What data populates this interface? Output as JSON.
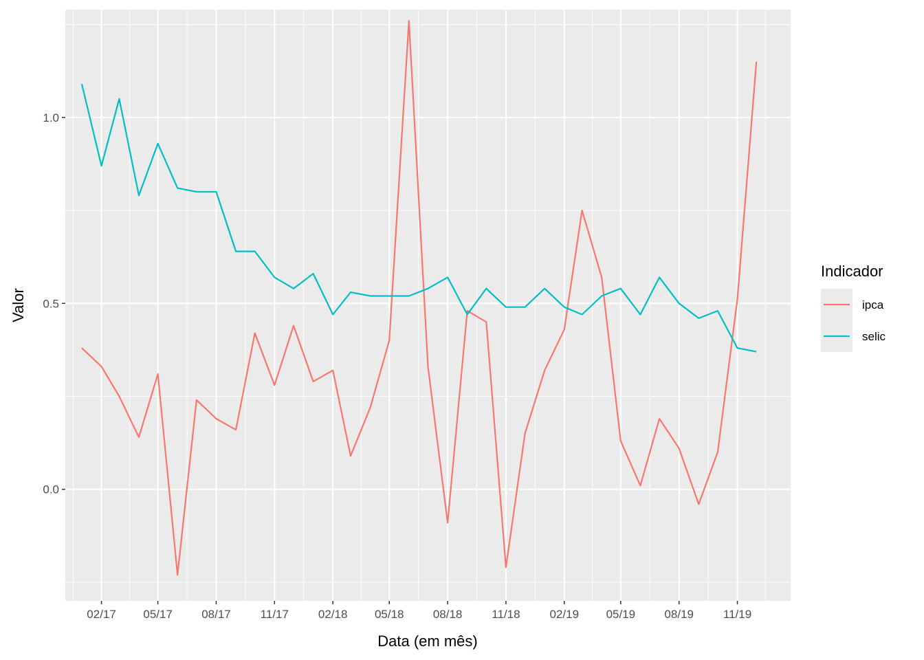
{
  "chart_data": {
    "type": "line",
    "xlabel": "Data (em mês)",
    "ylabel": "Valor",
    "x_tick_labels": [
      "02/17",
      "05/17",
      "08/17",
      "11/17",
      "02/18",
      "05/18",
      "08/18",
      "11/18",
      "02/19",
      "05/19",
      "08/19",
      "11/19"
    ],
    "x_tick_dates": [
      "2017-02",
      "2017-05",
      "2017-08",
      "2017-11",
      "2018-02",
      "2018-05",
      "2018-08",
      "2018-11",
      "2019-02",
      "2019-05",
      "2019-08",
      "2019-11"
    ],
    "y_tick_labels": [
      "0.0",
      "0.5",
      "1.0"
    ],
    "y_ticks": [
      0,
      0.5,
      1.0
    ],
    "x_range": [
      "2016-12-06",
      "2020-01-24"
    ],
    "ylim": [
      -0.3,
      1.29
    ],
    "grid": true,
    "legend": {
      "title": "Indicador",
      "position": "right"
    },
    "x": [
      "2017-01",
      "2017-02",
      "2017-03",
      "2017-04",
      "2017-05",
      "2017-06",
      "2017-07",
      "2017-08",
      "2017-09",
      "2017-10",
      "2017-11",
      "2017-12",
      "2018-01",
      "2018-02",
      "2018-03",
      "2018-04",
      "2018-05",
      "2018-06",
      "2018-07",
      "2018-08",
      "2018-09",
      "2018-10",
      "2018-11",
      "2018-12",
      "2019-01",
      "2019-02",
      "2019-03",
      "2019-04",
      "2019-05",
      "2019-06",
      "2019-07",
      "2019-08",
      "2019-09",
      "2019-10",
      "2019-11",
      "2019-12"
    ],
    "series": [
      {
        "name": "ipca",
        "color": "#F8766D",
        "values": [
          0.38,
          0.33,
          0.25,
          0.14,
          0.31,
          -0.23,
          0.24,
          0.19,
          0.16,
          0.42,
          0.28,
          0.44,
          0.29,
          0.32,
          0.09,
          0.22,
          0.4,
          1.26,
          0.33,
          -0.09,
          0.48,
          0.45,
          -0.21,
          0.15,
          0.32,
          0.43,
          0.75,
          0.57,
          0.13,
          0.01,
          0.19,
          0.11,
          -0.04,
          0.1,
          0.51,
          1.15
        ]
      },
      {
        "name": "selic",
        "color": "#00BFC4",
        "values": [
          1.09,
          0.87,
          1.05,
          0.79,
          0.93,
          0.81,
          0.8,
          0.8,
          0.64,
          0.64,
          0.57,
          0.54,
          0.58,
          0.47,
          0.53,
          0.52,
          0.52,
          0.52,
          0.54,
          0.57,
          0.47,
          0.54,
          0.49,
          0.49,
          0.54,
          0.49,
          0.47,
          0.52,
          0.54,
          0.47,
          0.57,
          0.5,
          0.46,
          0.48,
          0.38,
          0.37
        ]
      }
    ]
  }
}
